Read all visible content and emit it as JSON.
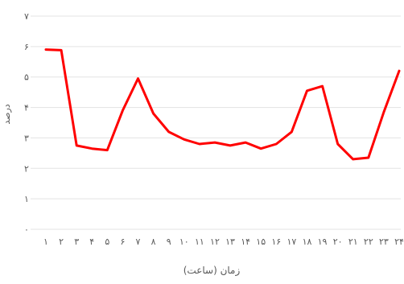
{
  "chart_data": {
    "type": "line",
    "title": "",
    "xlabel": "زمان (ساعت)",
    "ylabel": "درصد",
    "ylim": [
      0,
      7
    ],
    "y_ticks": [
      0,
      1,
      2,
      3,
      4,
      5,
      6,
      7
    ],
    "y_tick_labels": [
      "۰",
      "۱",
      "۲",
      "۳",
      "۴",
      "۵",
      "۶",
      "۷"
    ],
    "x_tick_labels": [
      "۱",
      "۲",
      "۳",
      "۴",
      "۵",
      "۶",
      "۷",
      "۸",
      "۹",
      "۱۰",
      "۱۱",
      "۱۲",
      "۱۳",
      "۱۴",
      "۱۵",
      "۱۶",
      "۱۷",
      "۱۸",
      "۱۹",
      "۲۰",
      "۲۱",
      "۲۲",
      "۲۳",
      "۲۴"
    ],
    "grid": true,
    "legend": "none",
    "series": [
      {
        "color": "#ff0000",
        "values": [
          5.9,
          5.88,
          2.75,
          2.65,
          2.6,
          3.9,
          4.95,
          3.8,
          3.2,
          2.95,
          2.8,
          2.85,
          2.75,
          2.85,
          2.65,
          2.8,
          3.2,
          4.55,
          4.7,
          2.8,
          2.3,
          2.35,
          3.85,
          5.2
        ]
      }
    ]
  }
}
